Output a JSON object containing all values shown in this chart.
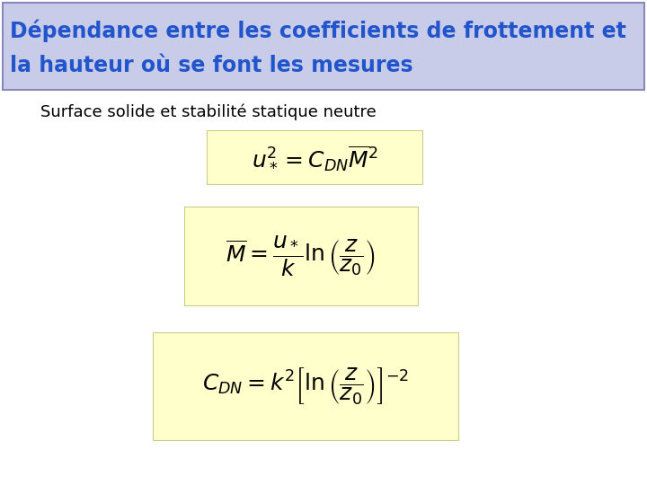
{
  "title_line1": "Dépendance entre les coefficients de frottement et",
  "title_line2": "la hauteur où se font les mesures",
  "subtitle": "Surface solide et stabilité statique neutre",
  "title_bg_color": "#c8cce8",
  "title_text_color": "#2255cc",
  "title_border_color": "#8888bb",
  "formula_bg_color": "#ffffcc",
  "formula_border_color": "#cccc88",
  "bg_color": "#ffffff",
  "subtitle_color": "#000000",
  "formula_text_color": "#000000",
  "title_fontsize": 17,
  "subtitle_fontsize": 13,
  "formula1_fontsize": 18,
  "formula2_fontsize": 18,
  "formula3_fontsize": 18
}
